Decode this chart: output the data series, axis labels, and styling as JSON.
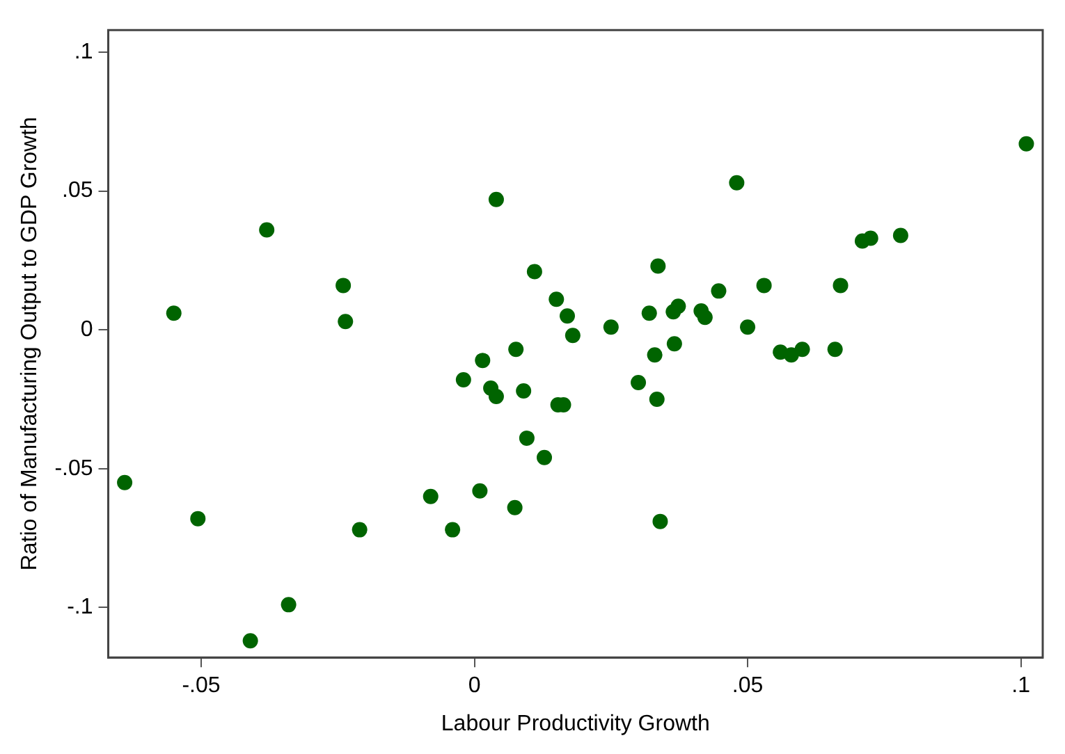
{
  "chart_data": {
    "type": "scatter",
    "xlabel": "Labour Productivity Growth",
    "ylabel": "Ratio of Manufacturing Output to GDP Growth",
    "xlim": [
      -0.067,
      0.104
    ],
    "ylim": [
      -0.118,
      0.108
    ],
    "xticks": [
      {
        "value": -0.05,
        "label": "-.05"
      },
      0,
      {
        "value": 0.05,
        "label": ".05"
      },
      {
        "value": 0.1,
        "label": ".1"
      }
    ],
    "yticks": [
      {
        "value": -0.1,
        "label": "-.1"
      },
      {
        "value": -0.05,
        "label": "-.05"
      },
      0,
      {
        "value": 0.05,
        "label": ".05"
      },
      {
        "value": 0.1,
        "label": ".1"
      }
    ],
    "grid": false,
    "legend": false,
    "marker": "circle",
    "series": [
      {
        "color": "#006400",
        "x": [
          -0.064,
          -0.055,
          -0.0506,
          -0.038,
          -0.041,
          -0.034,
          -0.024,
          -0.0236,
          -0.021,
          -0.008,
          -0.004,
          -0.002,
          0.001,
          0.0015,
          0.004,
          0.003,
          0.004,
          0.0076,
          0.0074,
          0.009,
          0.0096,
          0.011,
          0.0128,
          0.015,
          0.0153,
          0.0163,
          0.017,
          0.018,
          0.025,
          0.03,
          0.032,
          0.033,
          0.0334,
          0.0336,
          0.034,
          0.0364,
          0.0373,
          0.0366,
          0.0415,
          0.0422,
          0.0447,
          0.048,
          0.05,
          0.053,
          0.056,
          0.058,
          0.06,
          0.066,
          0.067,
          0.071,
          0.0725,
          0.078,
          0.101
        ],
        "values": [
          -0.055,
          0.006,
          -0.068,
          0.036,
          -0.112,
          -0.099,
          0.016,
          0.003,
          -0.072,
          -0.06,
          -0.072,
          -0.018,
          -0.058,
          -0.011,
          0.047,
          -0.021,
          -0.024,
          -0.007,
          -0.064,
          -0.022,
          -0.039,
          0.021,
          -0.046,
          0.011,
          -0.027,
          -0.027,
          0.005,
          -0.002,
          0.001,
          -0.019,
          0.006,
          -0.009,
          -0.025,
          0.023,
          -0.069,
          0.0065,
          0.0085,
          -0.005,
          0.0068,
          0.0045,
          0.014,
          0.053,
          0.001,
          0.016,
          -0.008,
          -0.009,
          -0.007,
          -0.007,
          0.016,
          0.032,
          0.033,
          0.034,
          0.067
        ]
      }
    ]
  }
}
